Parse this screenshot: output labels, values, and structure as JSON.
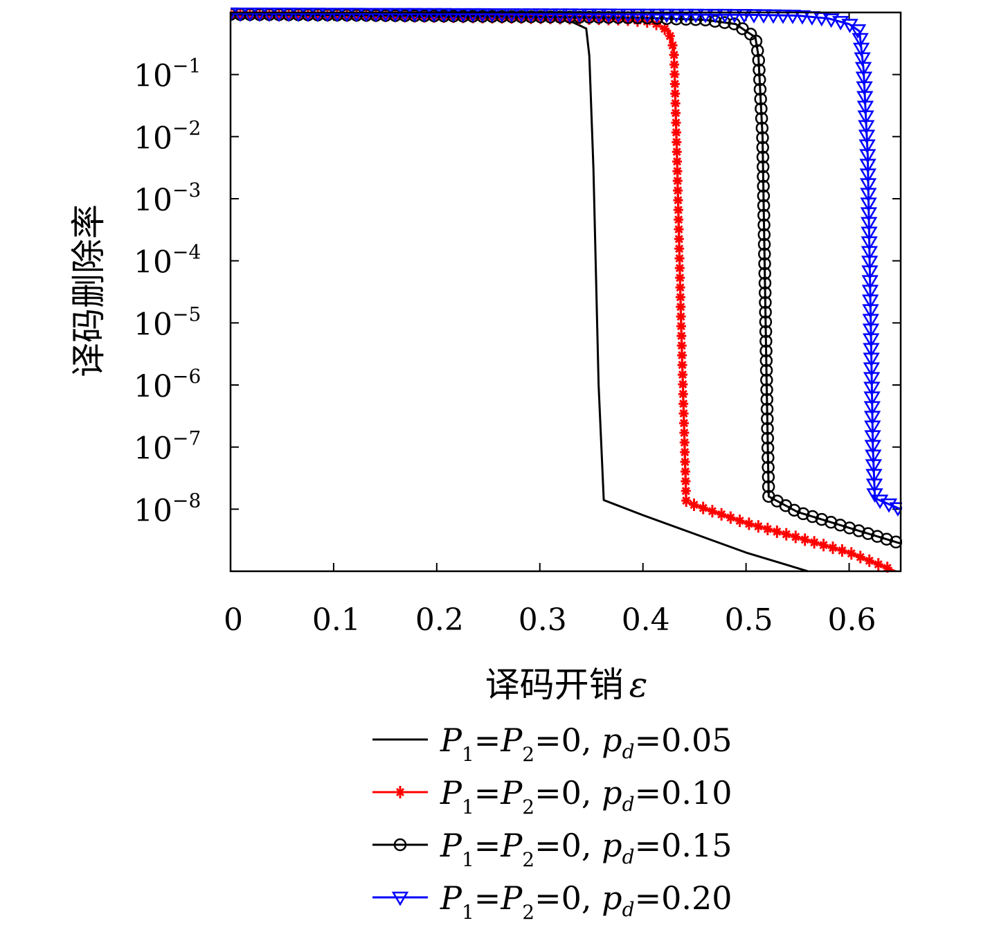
{
  "chart_data": {
    "type": "line",
    "xlabel": "译码开销",
    "xlabel_symbol": "ε",
    "ylabel": "译码删除率",
    "x_scale": "linear",
    "y_scale": "log",
    "xlim": [
      0,
      0.65
    ],
    "ylim": [
      1e-09,
      1
    ],
    "x_ticks": [
      0,
      0.1,
      0.2,
      0.3,
      0.4,
      0.5,
      0.6
    ],
    "x_tick_labels": [
      "0",
      "0.1",
      "0.2",
      "0.3",
      "0.4",
      "0.5",
      "0.6"
    ],
    "y_ticks": [
      {
        "value": 0.1,
        "base": "10",
        "exp": "−1"
      },
      {
        "value": 0.01,
        "base": "10",
        "exp": "−2"
      },
      {
        "value": 0.001,
        "base": "10",
        "exp": "−3"
      },
      {
        "value": 0.0001,
        "base": "10",
        "exp": "−4"
      },
      {
        "value": 1e-05,
        "base": "10",
        "exp": "−5"
      },
      {
        "value": 1e-06,
        "base": "10",
        "exp": "−6"
      },
      {
        "value": 1e-07,
        "base": "10",
        "exp": "−7"
      },
      {
        "value": 1e-08,
        "base": "10",
        "exp": "−8"
      }
    ],
    "legend_position": "bottom",
    "series": [
      {
        "name": "P1=P2=0, pd=0.05",
        "legend": {
          "pd": "0.05"
        },
        "color": "#000000",
        "marker": "none",
        "points": [
          [
            0,
            0.92
          ],
          [
            0.1,
            0.88
          ],
          [
            0.2,
            0.84
          ],
          [
            0.3,
            0.8
          ],
          [
            0.33,
            0.72
          ],
          [
            0.345,
            0.55
          ],
          [
            0.348,
            0.2
          ],
          [
            0.352,
            0.003
          ],
          [
            0.357,
            1e-06
          ],
          [
            0.362,
            1.4e-08
          ],
          [
            0.4,
            8e-09
          ],
          [
            0.45,
            4e-09
          ],
          [
            0.5,
            2e-09
          ],
          [
            0.56,
            1e-09
          ]
        ]
      },
      {
        "name": "P1=P2=0, pd=0.10",
        "legend": {
          "pd": "0.10"
        },
        "color": "#ff0000",
        "marker": "star",
        "points": [
          [
            0,
            0.92
          ],
          [
            0.1,
            0.9
          ],
          [
            0.2,
            0.86
          ],
          [
            0.3,
            0.82
          ],
          [
            0.38,
            0.78
          ],
          [
            0.41,
            0.7
          ],
          [
            0.425,
            0.5
          ],
          [
            0.43,
            0.25
          ],
          [
            0.433,
            0.005
          ],
          [
            0.437,
            1e-05
          ],
          [
            0.442,
            1.3e-08
          ],
          [
            0.5,
            6e-09
          ],
          [
            0.55,
            3.5e-09
          ],
          [
            0.6,
            2e-09
          ],
          [
            0.645,
            1e-09
          ]
        ]
      },
      {
        "name": "P1=P2=0, pd=0.15",
        "legend": {
          "pd": "0.15"
        },
        "color": "#000000",
        "marker": "circle",
        "points": [
          [
            0,
            0.93
          ],
          [
            0.1,
            0.91
          ],
          [
            0.2,
            0.88
          ],
          [
            0.3,
            0.85
          ],
          [
            0.4,
            0.82
          ],
          [
            0.46,
            0.76
          ],
          [
            0.49,
            0.65
          ],
          [
            0.5,
            0.5
          ],
          [
            0.509,
            0.4
          ],
          [
            0.512,
            0.2
          ],
          [
            0.516,
            0.01
          ],
          [
            0.52,
            1e-06
          ],
          [
            0.522,
            1.6e-08
          ],
          [
            0.55,
            9e-09
          ],
          [
            0.6,
            5e-09
          ],
          [
            0.65,
            2.8e-09
          ]
        ]
      },
      {
        "name": "P1=P2=0, pd=0.20",
        "legend": {
          "pd": "0.20"
        },
        "color": "#0000ff",
        "marker": "triangle-down",
        "points": [
          [
            0,
            0.97
          ],
          [
            0.1,
            0.96
          ],
          [
            0.2,
            0.95
          ],
          [
            0.3,
            0.94
          ],
          [
            0.4,
            0.93
          ],
          [
            0.5,
            0.92
          ],
          [
            0.55,
            0.89
          ],
          [
            0.58,
            0.8
          ],
          [
            0.6,
            0.65
          ],
          [
            0.61,
            0.5
          ],
          [
            0.614,
            0.12
          ],
          [
            0.618,
            0.005
          ],
          [
            0.621,
            1e-05
          ],
          [
            0.623,
            1e-07
          ],
          [
            0.625,
            1.5e-08
          ],
          [
            0.65,
            1e-08
          ]
        ]
      }
    ]
  },
  "legend": {
    "entries": [
      {
        "P1": "P",
        "sub1": "1",
        "eq1": "=",
        "P2": "P",
        "sub2": "2",
        "rest": "=0, ",
        "p": "p",
        "subd": "d",
        "val": "=0.05"
      },
      {
        "P1": "P",
        "sub1": "1",
        "eq1": "=",
        "P2": "P",
        "sub2": "2",
        "rest": "=0, ",
        "p": "p",
        "subd": "d",
        "val": "=0.10"
      },
      {
        "P1": "P",
        "sub1": "1",
        "eq1": "=",
        "P2": "P",
        "sub2": "2",
        "rest": "=0, ",
        "p": "p",
        "subd": "d",
        "val": "=0.15"
      },
      {
        "P1": "P",
        "sub1": "1",
        "eq1": "=",
        "P2": "P",
        "sub2": "2",
        "rest": "=0, ",
        "p": "p",
        "subd": "d",
        "val": "=0.20"
      }
    ]
  }
}
